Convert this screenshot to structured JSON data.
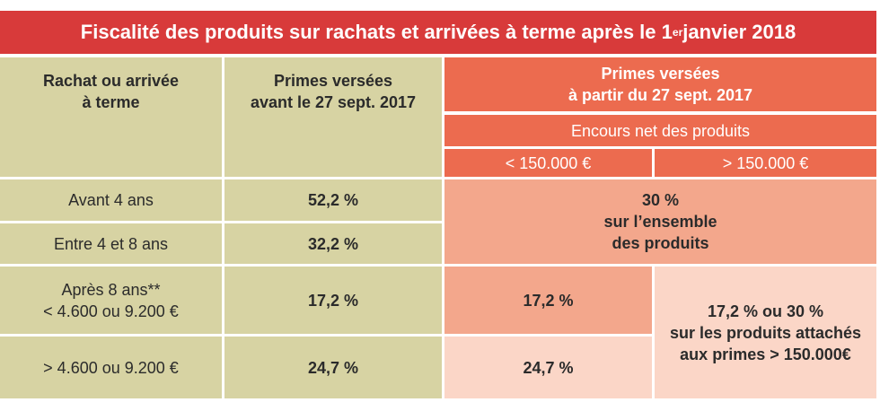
{
  "title": {
    "text_before": "Fiscalité des produits sur rachats et arrivées à terme après le 1",
    "superscript": "er",
    "text_after": " janvier 2018"
  },
  "header": {
    "col1": "Rachat ou arrivée\nà terme",
    "col2": "Primes versées\navant le 27 sept. 2017",
    "col3": "Primes versées\nà partir du 27 sept. 2017",
    "sub": "Encours net des produits",
    "sub_low": "< 150.000 €",
    "sub_high": "> 150.000 €"
  },
  "rows": [
    {
      "label": "Avant 4 ans",
      "before": "52,2 %"
    },
    {
      "label": "Entre 4 et 8 ans",
      "before": "32,2 %"
    },
    {
      "label": "Après 8 ans**\n< 4.600 ou 9.200 €",
      "before": "17,2 %",
      "low": "17,2 %"
    },
    {
      "label": "> 4.600 ou 9.200 €",
      "before": "24,7 %",
      "low": "24,7 %"
    }
  ],
  "merged_early": "30 %\nsur l’ensemble\ndes produits",
  "merged_high": "17,2 % ou 30 %\nsur les produits attachés\naux primes > 150.000€",
  "colors": {
    "title_bg": "#d83a3a",
    "olive": "#d7d3a3",
    "orange": "#ec6b4f",
    "salmon": "#f3a78c",
    "pale": "#fbd6c7"
  }
}
